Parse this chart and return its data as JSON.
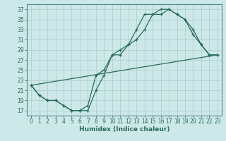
{
  "title": "",
  "xlabel": "Humidex (Indice chaleur)",
  "ylabel": "",
  "background_color": "#cce8e8",
  "grid_color": "#aacccc",
  "line_color": "#2a6b5a",
  "xlim": [
    -0.5,
    23.5
  ],
  "ylim": [
    16,
    38
  ],
  "xticks": [
    0,
    1,
    2,
    3,
    4,
    5,
    6,
    7,
    8,
    9,
    10,
    11,
    12,
    13,
    14,
    15,
    16,
    17,
    18,
    19,
    20,
    21,
    22,
    23
  ],
  "yticks": [
    17,
    19,
    21,
    23,
    25,
    27,
    29,
    31,
    33,
    35,
    37
  ],
  "line1_x": [
    0,
    1,
    2,
    3,
    4,
    5,
    6,
    7,
    8,
    9,
    10,
    11,
    12,
    13,
    14,
    15,
    16,
    17,
    18,
    19,
    20,
    21,
    22,
    23
  ],
  "line1_y": [
    22,
    20,
    19,
    19,
    18,
    17,
    17,
    17,
    21,
    24,
    28,
    28,
    30,
    31,
    33,
    36,
    36,
    37,
    36,
    35,
    32,
    30,
    28,
    28
  ],
  "line2_x": [
    0,
    1,
    2,
    3,
    4,
    5,
    6,
    7,
    8,
    9,
    10,
    11,
    12,
    13,
    14,
    15,
    16,
    17,
    18,
    19,
    20,
    21,
    22,
    23
  ],
  "line2_y": [
    22,
    20,
    19,
    19,
    18,
    17,
    17,
    18,
    24,
    25,
    28,
    29,
    30,
    33,
    36,
    36,
    37,
    37,
    36,
    35,
    33,
    30,
    28,
    28
  ],
  "line3_x": [
    0,
    23
  ],
  "line3_y": [
    22,
    28
  ]
}
